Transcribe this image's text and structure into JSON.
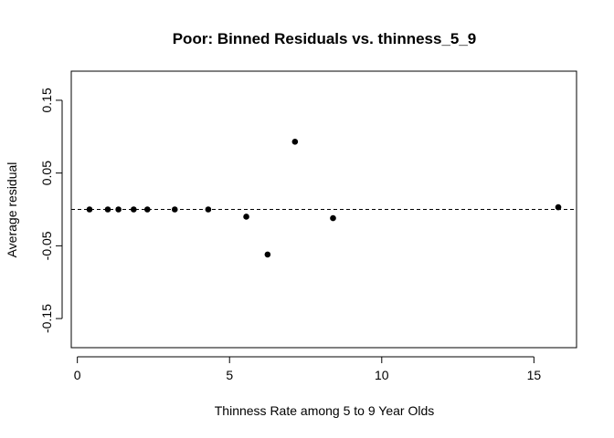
{
  "chart_data": {
    "type": "scatter",
    "title": "Poor: Binned Residuals vs. thinness_5_9",
    "xlabel": "Thinness Rate among 5 to 9 Year Olds",
    "ylabel": "Average residual",
    "xlim": [
      -0.2,
      16.4
    ],
    "ylim": [
      -0.19,
      0.19
    ],
    "x_ticks": [
      0,
      5,
      10,
      15
    ],
    "x_tick_labels": [
      "0",
      "5",
      "10",
      "15"
    ],
    "y_ticks": [
      -0.15,
      -0.05,
      0.05,
      0.15
    ],
    "y_tick_labels": [
      "-0.15",
      "-0.05",
      "0.05",
      "0.15"
    ],
    "reference_line": {
      "y": 0,
      "style": "dashed"
    },
    "grid": false,
    "legend": "none",
    "points": [
      {
        "x": 0.4,
        "y": 0.0
      },
      {
        "x": 1.0,
        "y": 0.0
      },
      {
        "x": 1.35,
        "y": 0.0
      },
      {
        "x": 1.85,
        "y": 0.0
      },
      {
        "x": 2.3,
        "y": 0.0
      },
      {
        "x": 3.2,
        "y": 0.0
      },
      {
        "x": 4.3,
        "y": 0.0
      },
      {
        "x": 5.55,
        "y": -0.01
      },
      {
        "x": 6.25,
        "y": -0.062
      },
      {
        "x": 7.15,
        "y": 0.093
      },
      {
        "x": 8.4,
        "y": -0.012
      },
      {
        "x": 15.8,
        "y": 0.003
      }
    ]
  }
}
